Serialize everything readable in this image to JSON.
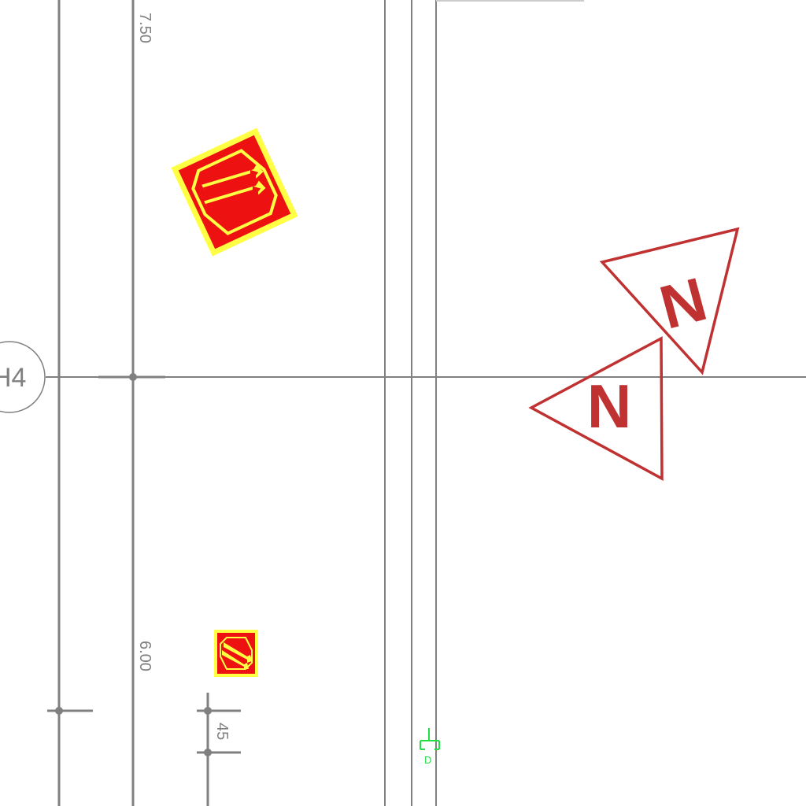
{
  "grid": {
    "bubble_label": "H4"
  },
  "dimensions": {
    "upper_vertical": "7.50",
    "lower_vertical": "6.00",
    "small_offset": "45"
  },
  "north_markers": [
    {
      "letter": "N"
    },
    {
      "letter": "N"
    }
  ],
  "symbols": {
    "large_sign": "hazard-sign-large",
    "small_sign": "hazard-sign-small",
    "green_fixture": {
      "tag": "D"
    }
  },
  "colors": {
    "gridline": "#808080",
    "north_marker": "#c03232",
    "sign_red": "#ee1111",
    "sign_yellow": "#ffff44",
    "fixture_green": "#22dd44"
  }
}
